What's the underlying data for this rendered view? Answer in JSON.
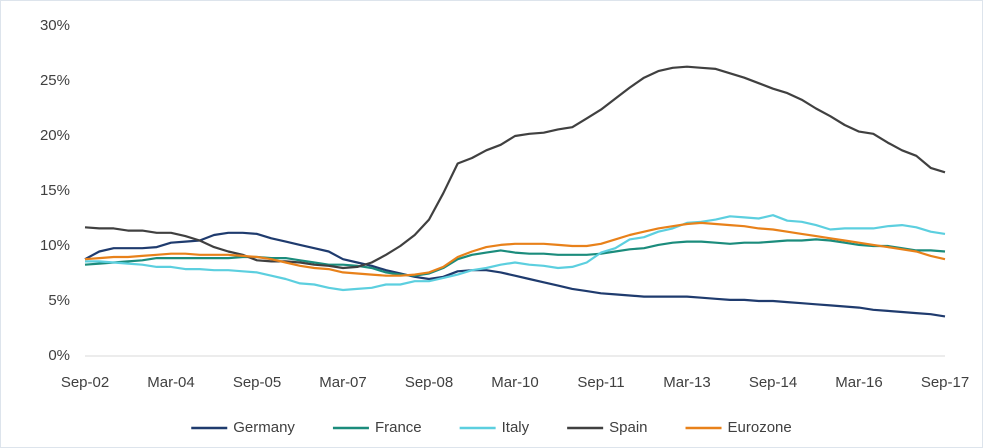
{
  "chart_data": {
    "type": "line",
    "categories": [
      "Sep-02",
      null,
      null,
      null,
      null,
      null,
      "Mar-04",
      null,
      null,
      null,
      null,
      null,
      "Sep-05",
      null,
      null,
      null,
      null,
      null,
      "Mar-07",
      null,
      null,
      null,
      null,
      null,
      "Sep-08",
      null,
      null,
      null,
      null,
      null,
      "Mar-10",
      null,
      null,
      null,
      null,
      null,
      "Sep-11",
      null,
      null,
      null,
      null,
      null,
      "Mar-13",
      null,
      null,
      null,
      null,
      null,
      "Sep-14",
      null,
      null,
      null,
      null,
      null,
      "Mar-16",
      null,
      null,
      null,
      null,
      null,
      "Sep-17"
    ],
    "series": [
      {
        "name": "Germany",
        "color": "#1f3b6e",
        "values": [
          8.8,
          9.5,
          9.8,
          9.8,
          9.8,
          9.9,
          10.3,
          10.4,
          10.5,
          11.0,
          11.2,
          11.2,
          11.1,
          10.7,
          10.4,
          10.1,
          9.8,
          9.5,
          8.8,
          8.5,
          8.2,
          7.8,
          7.5,
          7.2,
          7.0,
          7.2,
          7.7,
          7.8,
          7.8,
          7.6,
          7.3,
          7.0,
          6.7,
          6.4,
          6.1,
          5.9,
          5.7,
          5.6,
          5.5,
          5.4,
          5.4,
          5.4,
          5.4,
          5.3,
          5.2,
          5.1,
          5.1,
          5.0,
          5.0,
          4.9,
          4.8,
          4.7,
          4.6,
          4.5,
          4.4,
          4.2,
          4.1,
          4.0,
          3.9,
          3.8,
          3.6
        ]
      },
      {
        "name": "France",
        "color": "#1b8c7c",
        "values": [
          8.3,
          8.4,
          8.5,
          8.6,
          8.7,
          8.9,
          8.9,
          8.9,
          8.9,
          8.9,
          8.9,
          9.0,
          9.0,
          8.9,
          8.9,
          8.7,
          8.5,
          8.3,
          8.3,
          8.2,
          8.0,
          7.6,
          7.4,
          7.3,
          7.5,
          8.0,
          8.8,
          9.2,
          9.4,
          9.6,
          9.4,
          9.3,
          9.3,
          9.2,
          9.2,
          9.2,
          9.3,
          9.5,
          9.7,
          9.8,
          10.1,
          10.3,
          10.4,
          10.4,
          10.3,
          10.2,
          10.3,
          10.3,
          10.4,
          10.5,
          10.5,
          10.6,
          10.5,
          10.3,
          10.1,
          10.0,
          10.0,
          9.8,
          9.6,
          9.6,
          9.5
        ]
      },
      {
        "name": "Italy",
        "color": "#5ccfdf",
        "values": [
          8.6,
          8.6,
          8.5,
          8.4,
          8.3,
          8.1,
          8.1,
          7.9,
          7.9,
          7.8,
          7.8,
          7.7,
          7.6,
          7.3,
          7.0,
          6.6,
          6.5,
          6.2,
          6.0,
          6.1,
          6.2,
          6.5,
          6.5,
          6.8,
          6.8,
          7.1,
          7.4,
          7.8,
          8.0,
          8.3,
          8.5,
          8.3,
          8.2,
          8.0,
          8.1,
          8.5,
          9.4,
          9.8,
          10.6,
          10.8,
          11.3,
          11.6,
          12.1,
          12.2,
          12.4,
          12.7,
          12.6,
          12.5,
          12.8,
          12.3,
          12.2,
          11.9,
          11.5,
          11.6,
          11.6,
          11.6,
          11.8,
          11.9,
          11.7,
          11.3,
          11.1
        ]
      },
      {
        "name": "Spain",
        "color": "#404040",
        "values": [
          11.7,
          11.6,
          11.6,
          11.4,
          11.4,
          11.2,
          11.2,
          10.9,
          10.5,
          9.9,
          9.5,
          9.2,
          8.7,
          8.6,
          8.6,
          8.5,
          8.3,
          8.2,
          8.0,
          8.1,
          8.5,
          9.2,
          10.0,
          11.0,
          12.4,
          14.8,
          17.5,
          18.0,
          18.7,
          19.2,
          20.0,
          20.2,
          20.3,
          20.6,
          20.8,
          21.6,
          22.4,
          23.4,
          24.4,
          25.3,
          25.9,
          26.2,
          26.3,
          26.2,
          26.1,
          25.7,
          25.3,
          24.8,
          24.3,
          23.9,
          23.3,
          22.5,
          21.8,
          21.0,
          20.4,
          20.2,
          19.4,
          18.7,
          18.2,
          17.1,
          16.7
        ]
      },
      {
        "name": "Eurozone",
        "color": "#e8811a",
        "values": [
          8.8,
          8.9,
          9.0,
          9.0,
          9.1,
          9.2,
          9.3,
          9.3,
          9.2,
          9.2,
          9.2,
          9.1,
          9.0,
          8.8,
          8.5,
          8.2,
          8.0,
          7.9,
          7.6,
          7.5,
          7.4,
          7.3,
          7.3,
          7.4,
          7.6,
          8.1,
          9.0,
          9.5,
          9.9,
          10.1,
          10.2,
          10.2,
          10.2,
          10.1,
          10.0,
          10.0,
          10.2,
          10.6,
          11.0,
          11.3,
          11.6,
          11.8,
          12.0,
          12.1,
          12.0,
          11.9,
          11.8,
          11.6,
          11.5,
          11.3,
          11.1,
          10.9,
          10.7,
          10.5,
          10.3,
          10.1,
          9.9,
          9.7,
          9.5,
          9.1,
          8.8
        ]
      }
    ],
    "ylim": [
      0,
      30
    ],
    "yticks": [
      {
        "value": 0,
        "label": "0%"
      },
      {
        "value": 5,
        "label": "5%"
      },
      {
        "value": 10,
        "label": "10%"
      },
      {
        "value": 15,
        "label": "15%"
      },
      {
        "value": 20,
        "label": "20%"
      },
      {
        "value": 25,
        "label": "25%"
      },
      {
        "value": 30,
        "label": "30%"
      }
    ],
    "grid": false,
    "legend": "bottom"
  }
}
